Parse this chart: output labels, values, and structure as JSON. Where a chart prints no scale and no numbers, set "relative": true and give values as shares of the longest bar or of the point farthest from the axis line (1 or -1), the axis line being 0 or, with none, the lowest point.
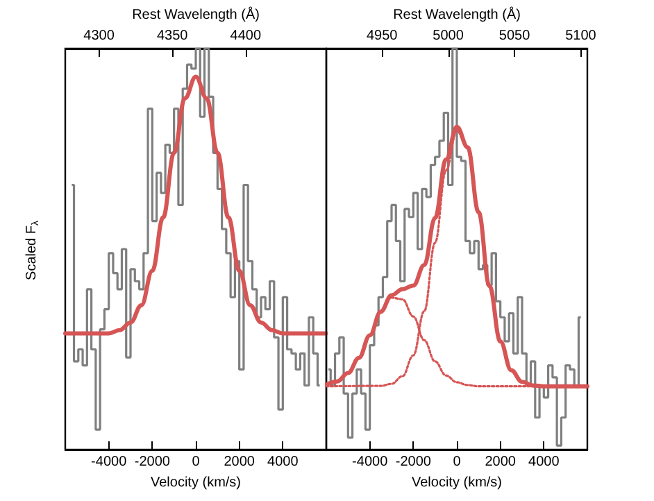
{
  "chart_data": [
    {
      "type": "step",
      "relative": true,
      "xlabel": "Velocity (km/s)",
      "x2label": "Rest Wavelength (Å)",
      "ylabel": "Scaled F$_{λ}$",
      "xlim": [
        -6000,
        6000
      ],
      "xticks": [
        -4000,
        -2000,
        0,
        2000,
        4000
      ],
      "x2lim": [
        4277,
        4455
      ],
      "x2ticks": [
        4300,
        4350,
        4400
      ],
      "grid": false,
      "series": [
        {
          "color": "#7f7f7f",
          "x": [
            -5700,
            -5500,
            -5300,
            -5100,
            -4900,
            -4700,
            -4500,
            -4300,
            -4100,
            -3900,
            -3700,
            -3500,
            -3300,
            -3100,
            -2900,
            -2700,
            -2500,
            -2300,
            -2100,
            -1900,
            -1700,
            -1500,
            -1300,
            -1100,
            -900,
            -700,
            -500,
            -300,
            -100,
            100,
            300,
            500,
            700,
            900,
            1100,
            1300,
            1500,
            1700,
            1900,
            2100,
            2300,
            2500,
            2700,
            2900,
            3100,
            3300,
            3500,
            3700,
            3900,
            4100,
            4300,
            4500,
            4700,
            4900,
            5100,
            5300,
            5500,
            5700
          ],
          "values": [
            0.66,
            0.22,
            0.25,
            0.21,
            0.4,
            0.25,
            0.05,
            0.3,
            0.35,
            0.49,
            0.44,
            0.4,
            0.5,
            0.23,
            0.45,
            0.42,
            0.4,
            0.49,
            0.85,
            0.57,
            0.69,
            0.64,
            0.76,
            0.74,
            0.85,
            0.61,
            0.9,
            0.96,
            0.95,
            1.0,
            0.83,
            1.0,
            0.88,
            0.74,
            0.65,
            0.55,
            0.49,
            0.38,
            0.47,
            0.2,
            0.66,
            0.47,
            0.4,
            0.33,
            0.38,
            0.35,
            0.42,
            0.28,
            0.1,
            0.38,
            0.25,
            0.24,
            0.2,
            0.24,
            0.16,
            0.33,
            0.24,
            0.16
          ]
        },
        {
          "type": "line",
          "color": "#d65555",
          "x": [
            -6000,
            -4000,
            -3500,
            -3000,
            -2500,
            -2000,
            -1500,
            -1000,
            -500,
            0,
            500,
            1000,
            1500,
            2000,
            2500,
            3000,
            3500,
            4000,
            6000
          ],
          "values": [
            0.29,
            0.29,
            0.298,
            0.317,
            0.36,
            0.446,
            0.579,
            0.74,
            0.876,
            0.93,
            0.876,
            0.74,
            0.579,
            0.446,
            0.36,
            0.317,
            0.298,
            0.29,
            0.29
          ]
        }
      ]
    },
    {
      "type": "step",
      "relative": true,
      "xlabel": "Velocity (km/s)",
      "x2label": "Rest Wavelength (Å)",
      "xlim": [
        -6000,
        6000
      ],
      "xticks": [
        -4000,
        -2000,
        0,
        2000,
        4000
      ],
      "x2lim": [
        4908,
        5105
      ],
      "x2ticks": [
        4950,
        5000,
        5050,
        5100
      ],
      "grid": false,
      "series": [
        {
          "color": "#7f7f7f",
          "x": [
            -5900,
            -5700,
            -5500,
            -5300,
            -5100,
            -4900,
            -4700,
            -4500,
            -4300,
            -4100,
            -3900,
            -3700,
            -3500,
            -3300,
            -3100,
            -2900,
            -2700,
            -2500,
            -2300,
            -2100,
            -1900,
            -1700,
            -1500,
            -1300,
            -1100,
            -900,
            -700,
            -500,
            -300,
            -100,
            100,
            300,
            500,
            700,
            900,
            1100,
            1300,
            1500,
            1700,
            1900,
            2100,
            2300,
            2500,
            2700,
            2900,
            3100,
            3300,
            3500,
            3700,
            3900,
            4100,
            4300,
            4500,
            4700,
            4900,
            5100,
            5300,
            5500,
            5700
          ],
          "values": [
            0.2,
            0.16,
            0.24,
            0.28,
            0.14,
            0.03,
            0.14,
            0.2,
            0.14,
            0.05,
            0.26,
            0.31,
            0.38,
            0.43,
            0.57,
            0.61,
            0.52,
            0.42,
            0.6,
            0.58,
            0.64,
            0.5,
            0.65,
            0.63,
            0.71,
            0.73,
            0.77,
            0.84,
            0.66,
            1.0,
            0.73,
            0.72,
            0.52,
            0.49,
            0.52,
            0.45,
            0.46,
            0.41,
            0.49,
            0.37,
            0.33,
            0.27,
            0.34,
            0.24,
            0.38,
            0.24,
            0.16,
            0.22,
            0.08,
            0.16,
            0.13,
            0.21,
            0.18,
            0.01,
            0.08,
            0.21,
            0.2,
            0.16,
            0.33
          ]
        },
        {
          "type": "line",
          "color": "#d65555",
          "line_style": "dotted",
          "x": [
            -6000,
            -5500,
            -5000,
            -4500,
            -4000,
            -3500,
            -3000,
            -2500,
            -2000,
            -1500,
            -1000,
            -500,
            0,
            500,
            1000,
            6000
          ],
          "values": [
            0.162,
            0.17,
            0.191,
            0.229,
            0.285,
            0.343,
            0.379,
            0.375,
            0.332,
            0.273,
            0.22,
            0.185,
            0.168,
            0.161,
            0.158,
            0.158
          ]
        },
        {
          "type": "line",
          "color": "#d65555",
          "line_style": "dotted",
          "x": [
            -6000,
            -3500,
            -3000,
            -2500,
            -2000,
            -1500,
            -1000,
            -500,
            0,
            500,
            1000,
            1500,
            2000,
            2500,
            3000,
            3500,
            4000,
            6000
          ],
          "values": [
            0.158,
            0.159,
            0.164,
            0.183,
            0.235,
            0.345,
            0.516,
            0.696,
            0.795,
            0.751,
            0.592,
            0.408,
            0.27,
            0.198,
            0.169,
            0.16,
            0.158,
            0.158
          ]
        },
        {
          "type": "line",
          "color": "#d65555",
          "x": [
            -6000,
            -5500,
            -5000,
            -4500,
            -4000,
            -3500,
            -3000,
            -2500,
            -2000,
            -1500,
            -1000,
            -500,
            0,
            500,
            1000,
            1500,
            2000,
            2500,
            3000,
            3500,
            4000,
            5000,
            6000
          ],
          "values": [
            0.162,
            0.17,
            0.191,
            0.229,
            0.285,
            0.344,
            0.385,
            0.4,
            0.409,
            0.46,
            0.578,
            0.723,
            0.805,
            0.754,
            0.592,
            0.408,
            0.27,
            0.198,
            0.169,
            0.16,
            0.158,
            0.158,
            0.158
          ]
        }
      ]
    }
  ]
}
